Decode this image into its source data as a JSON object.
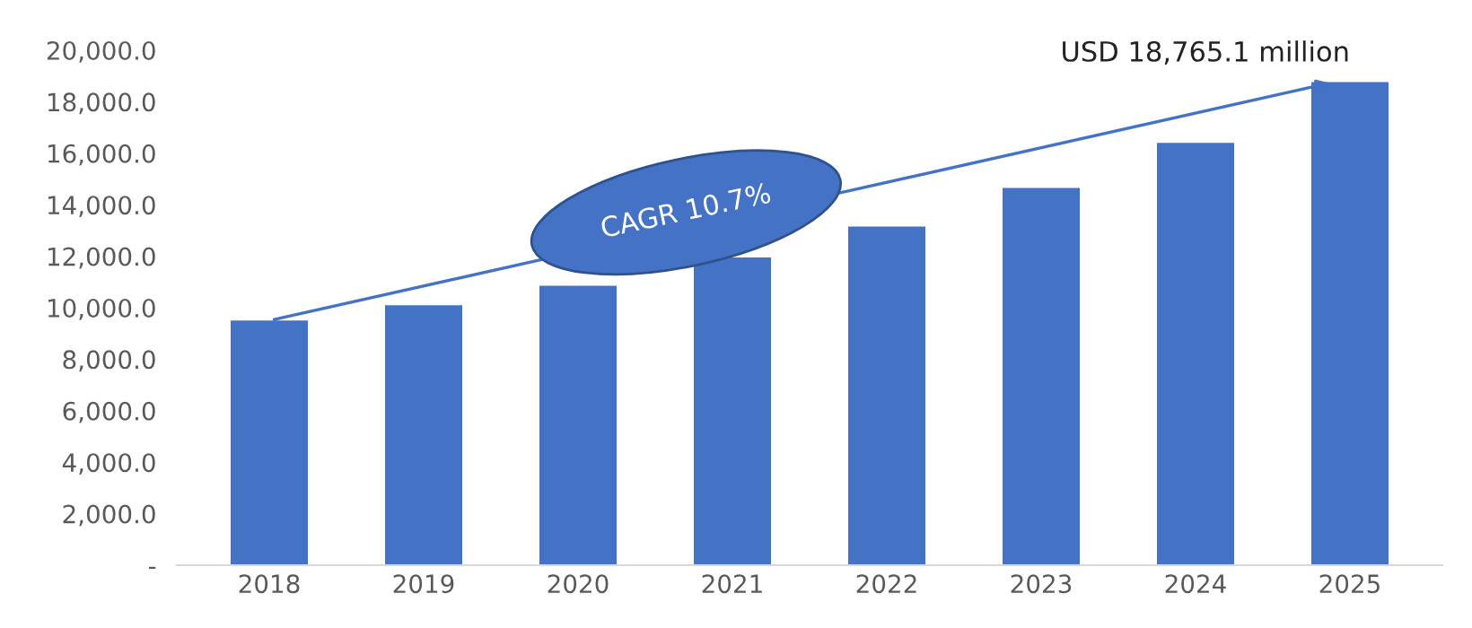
{
  "chart_data": {
    "type": "bar",
    "categories": [
      "2018",
      "2019",
      "2020",
      "2021",
      "2022",
      "2023",
      "2024",
      "2025"
    ],
    "values": [
      9500,
      10100,
      10850,
      11950,
      13150,
      14650,
      16400,
      18765.1
    ],
    "color": "#4472c4",
    "ylim": [
      0,
      20000
    ],
    "yticks": [
      {
        "value": 0,
        "label": "-"
      },
      {
        "value": 2000,
        "label": "2,000.0"
      },
      {
        "value": 4000,
        "label": "4,000.0"
      },
      {
        "value": 6000,
        "label": "6,000.0"
      },
      {
        "value": 8000,
        "label": "8,000.0"
      },
      {
        "value": 10000,
        "label": "10,000.0"
      },
      {
        "value": 12000,
        "label": "12,000.0"
      },
      {
        "value": 14000,
        "label": "14,000.0"
      },
      {
        "value": 16000,
        "label": "16,000.0"
      },
      {
        "value": 18000,
        "label": "18,000.0"
      },
      {
        "value": 20000,
        "label": "20,000.0"
      }
    ],
    "grid": false,
    "annotations": [
      {
        "text": "USD 18,765.1 million",
        "x": "2025",
        "y": 18765.1
      },
      "CAGR 10.7%"
    ]
  }
}
